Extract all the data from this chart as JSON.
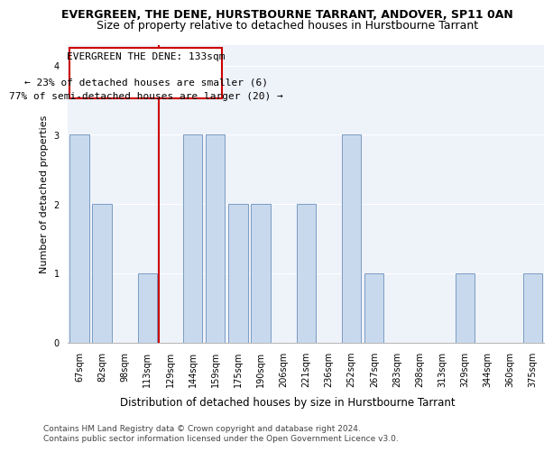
{
  "title": "EVERGREEN, THE DENE, HURSTBOURNE TARRANT, ANDOVER, SP11 0AN",
  "subtitle": "Size of property relative to detached houses in Hurstbourne Tarrant",
  "xlabel": "Distribution of detached houses by size in Hurstbourne Tarrant",
  "ylabel": "Number of detached properties",
  "categories": [
    "67sqm",
    "82sqm",
    "98sqm",
    "113sqm",
    "129sqm",
    "144sqm",
    "159sqm",
    "175sqm",
    "190sqm",
    "206sqm",
    "221sqm",
    "236sqm",
    "252sqm",
    "267sqm",
    "283sqm",
    "298sqm",
    "313sqm",
    "329sqm",
    "344sqm",
    "360sqm",
    "375sqm"
  ],
  "values": [
    3,
    2,
    0,
    1,
    0,
    3,
    3,
    2,
    2,
    0,
    2,
    0,
    3,
    1,
    0,
    0,
    0,
    1,
    0,
    0,
    1
  ],
  "bar_color": "#c9d9ed",
  "bar_edge_color": "#7a9cc4",
  "annotation_line1": "EVERGREEN THE DENE: 133sqm",
  "annotation_line2": "← 23% of detached houses are smaller (6)",
  "annotation_line3": "77% of semi-detached houses are larger (20) →",
  "vline_index": 4,
  "vline_color": "#cc0000",
  "box_edge_color": "#cc0000",
  "ylim": [
    0,
    4.3
  ],
  "yticks": [
    0,
    1,
    2,
    3,
    4
  ],
  "footer1": "Contains HM Land Registry data © Crown copyright and database right 2024.",
  "footer2": "Contains public sector information licensed under the Open Government Licence v3.0.",
  "bg_color": "#eef2f9",
  "title_fontsize": 9,
  "subtitle_fontsize": 9,
  "xlabel_fontsize": 8.5,
  "ylabel_fontsize": 8,
  "tick_fontsize": 7,
  "annotation_fontsize": 8,
  "footer_fontsize": 6.5,
  "grid_color": "#ffffff"
}
